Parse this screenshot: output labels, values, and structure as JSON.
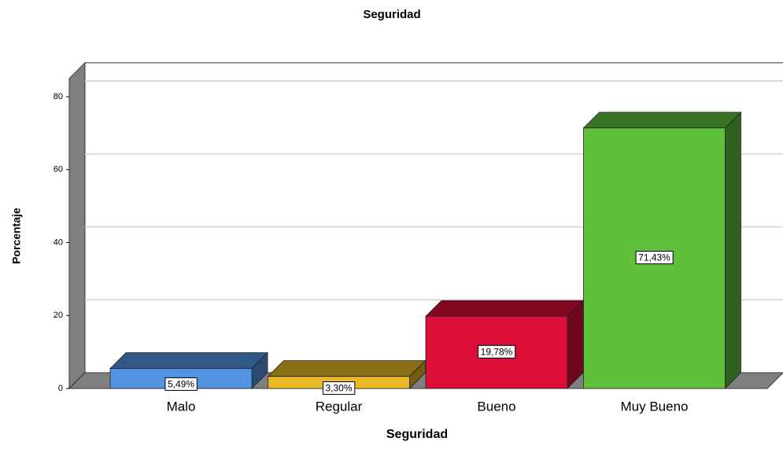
{
  "chart_data": {
    "type": "bar3d",
    "title": "Seguridad",
    "x_label": "Seguridad",
    "y_label": "Porcentaje",
    "categories": [
      "Malo",
      "Regular",
      "Bueno",
      "Muy Bueno"
    ],
    "values": [
      5.49,
      3.3,
      19.78,
      71.43
    ],
    "value_labels": [
      "5,49%",
      "3,30%",
      "19,78%",
      "71,43%"
    ],
    "colors": [
      "#5393e3",
      "#e8b924",
      "#dc0d36",
      "#5ec03b"
    ],
    "ylim": [
      0,
      85
    ],
    "yticks": [
      0,
      20,
      40,
      60,
      80
    ],
    "grid": true
  }
}
